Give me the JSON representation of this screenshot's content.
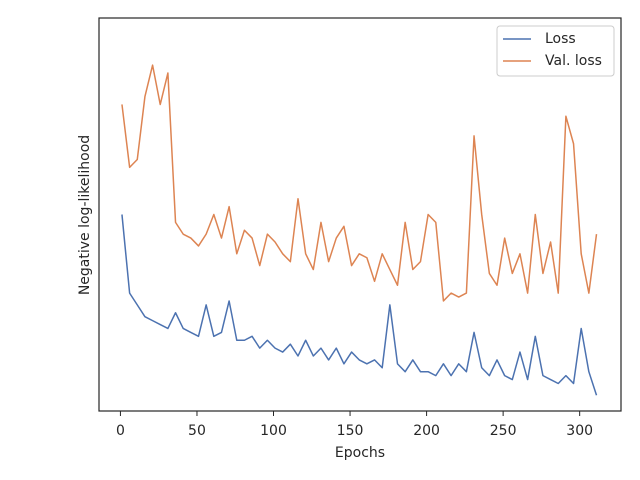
{
  "chart_data": {
    "type": "line",
    "x_label": "Epochs",
    "y_label": "Negative log-likelihood",
    "x": [
      1,
      6,
      11,
      16,
      21,
      26,
      31,
      36,
      41,
      46,
      51,
      56,
      61,
      66,
      71,
      76,
      81,
      86,
      91,
      96,
      101,
      106,
      111,
      116,
      121,
      126,
      131,
      136,
      141,
      146,
      151,
      156,
      161,
      166,
      171,
      176,
      181,
      186,
      191,
      196,
      201,
      206,
      211,
      216,
      221,
      226,
      231,
      236,
      241,
      246,
      251,
      256,
      261,
      266,
      271,
      276,
      281,
      286,
      291,
      296,
      301,
      306,
      311
    ],
    "series": [
      {
        "name": "Loss",
        "color": "#4c72b0",
        "values": [
          50,
          30,
          27,
          24,
          23,
          22,
          21,
          25,
          21,
          20,
          19,
          27,
          19,
          20,
          28,
          18,
          18,
          19,
          16,
          18,
          16,
          15,
          17,
          14,
          18,
          14,
          16,
          13,
          16,
          12,
          15,
          13,
          12,
          13,
          11,
          27,
          12,
          10,
          13,
          10,
          10,
          9,
          12,
          9,
          12,
          10,
          20,
          11,
          9,
          13,
          9,
          8,
          15,
          8,
          19,
          9,
          8,
          7,
          9,
          7,
          21,
          10,
          4
        ]
      },
      {
        "name": "Val. loss",
        "color": "#dd8452",
        "values": [
          78,
          62,
          64,
          80,
          88,
          78,
          86,
          48,
          45,
          44,
          42,
          45,
          50,
          44,
          52,
          40,
          46,
          44,
          37,
          45,
          43,
          40,
          38,
          54,
          40,
          36,
          48,
          38,
          44,
          47,
          37,
          40,
          39,
          33,
          40,
          36,
          32,
          48,
          36,
          38,
          50,
          48,
          28,
          30,
          29,
          30,
          70,
          50,
          35,
          32,
          44,
          35,
          40,
          30,
          50,
          35,
          43,
          30,
          75,
          68,
          40,
          30,
          45
        ]
      }
    ],
    "xlim": [
      -14,
      327
    ],
    "xticks": [
      0,
      50,
      100,
      150,
      200,
      250,
      300
    ],
    "ylim": [
      0,
      100
    ],
    "legend": "upper right"
  }
}
